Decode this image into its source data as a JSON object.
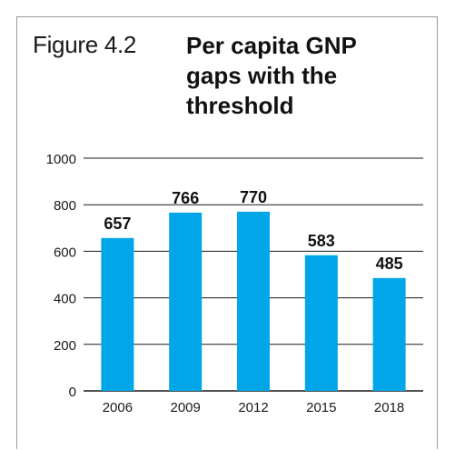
{
  "figure": {
    "label": "Figure 4.2",
    "title": "Per capita GNP\ngaps with the\nthreshold"
  },
  "colors": {
    "bar": "#00a6e8",
    "axis": "#1a1a1a",
    "text": "#1a1a1a"
  },
  "chart_data": {
    "type": "bar",
    "title": "Per capita GNP gaps with the threshold",
    "categories": [
      "2006",
      "2009",
      "2012",
      "2015",
      "2018"
    ],
    "values": [
      657,
      766,
      770,
      583,
      485
    ],
    "ylim": [
      0,
      1000
    ],
    "yticks": [
      0,
      200,
      400,
      600,
      800,
      1000
    ],
    "xlabel": "",
    "ylabel": "",
    "grid": true,
    "data_labels": true
  }
}
